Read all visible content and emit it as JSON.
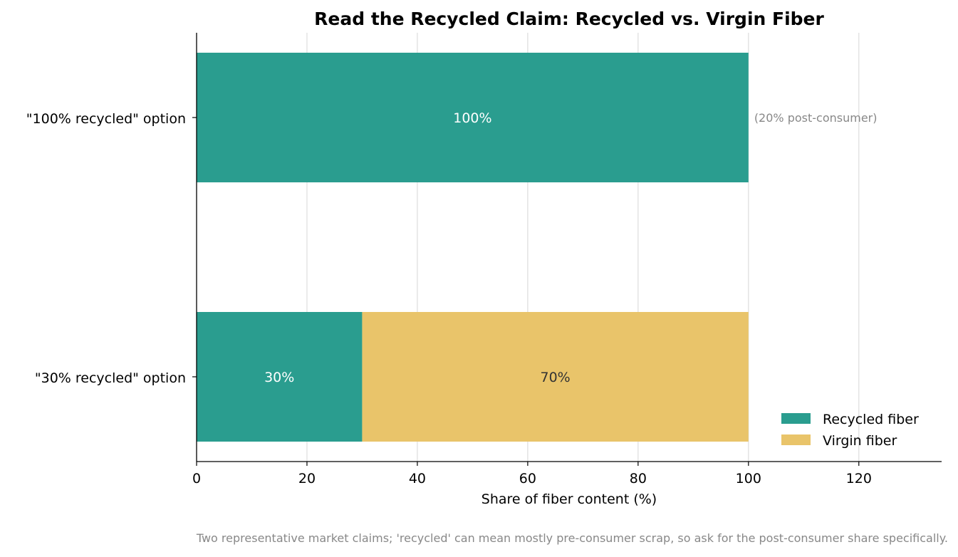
{
  "chart_data": {
    "type": "bar",
    "orientation": "horizontal",
    "stacked": true,
    "title": "Read the Recycled Claim: Recycled vs. Virgin Fiber",
    "xlabel": "Share of fiber content (%)",
    "ylabel": "",
    "xlim": [
      0,
      135
    ],
    "xticks": [
      0,
      20,
      40,
      60,
      80,
      100,
      120
    ],
    "categories": [
      "\"100% recycled\" option",
      "\"30% recycled\" option"
    ],
    "series": [
      {
        "name": "Recycled fiber",
        "color": "#2a9d8f",
        "values": [
          100,
          30
        ],
        "labels": [
          "100%",
          "30%"
        ],
        "label_color": "#ffffff"
      },
      {
        "name": "Virgin fiber",
        "color": "#e9c46a",
        "values": [
          0,
          70
        ],
        "labels": [
          "",
          "70%"
        ],
        "label_color": "#333333"
      }
    ],
    "annotations": [
      {
        "category_index": 0,
        "text": "(20% post-consumer)"
      }
    ],
    "grid": "vertical",
    "legend_position": "lower-right"
  },
  "footnote": "Two representative market claims; 'recycled' can mean mostly pre-consumer scrap, so ask for the post-consumer share specifically."
}
